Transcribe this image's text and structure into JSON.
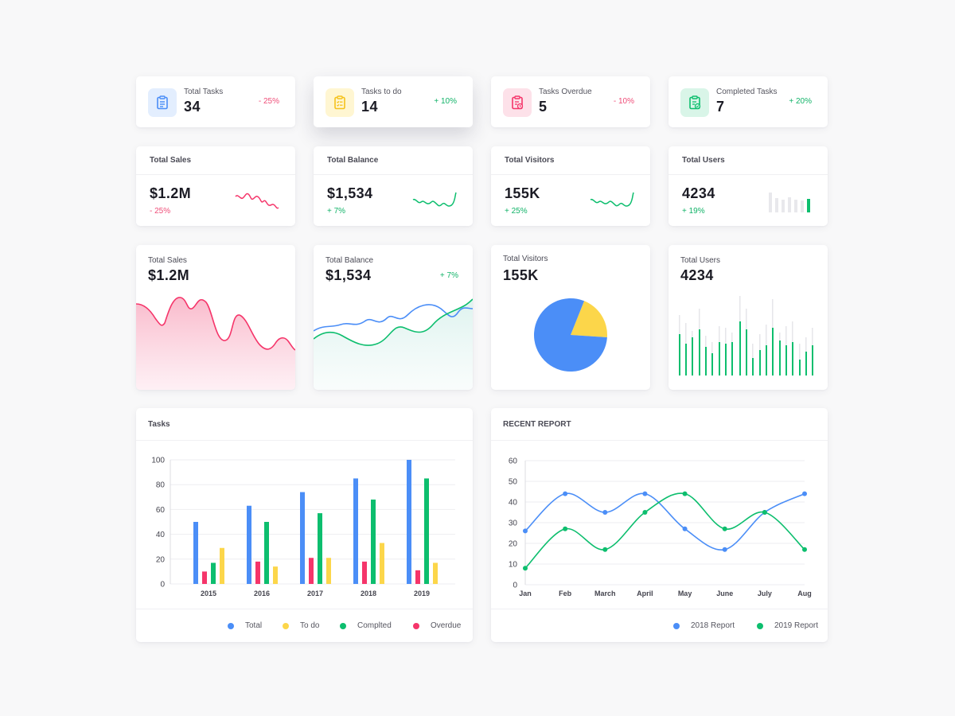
{
  "colors": {
    "blue": "#4b8ef7",
    "yellow": "#fcd64a",
    "green": "#0dbe6e",
    "pink": "#f5356a",
    "pink_text": "#ef4d78",
    "green_text": "#11b368"
  },
  "stats": [
    {
      "label": "Total Tasks",
      "value": "34",
      "change": "- 25%",
      "trend": "down",
      "icon": "clipboard-list-icon",
      "color": "blue"
    },
    {
      "label": "Tasks to do",
      "value": "14",
      "change": "+ 10%",
      "trend": "up",
      "icon": "clipboard-checklist-icon",
      "color": "yellow"
    },
    {
      "label": "Tasks Overdue",
      "value": "5",
      "change": "- 10%",
      "trend": "down",
      "icon": "clipboard-clock-icon",
      "color": "pink"
    },
    {
      "label": "Completed Tasks",
      "value": "7",
      "change": "+ 20%",
      "trend": "up",
      "icon": "clipboard-check-icon",
      "color": "green"
    }
  ],
  "metrics": [
    {
      "title": "Total Sales",
      "value": "$1.2M",
      "change": "- 25%",
      "trend": "down",
      "spark": "line"
    },
    {
      "title": "Total Balance",
      "value": "$1,534",
      "change": "+ 7%",
      "trend": "up",
      "spark": "line"
    },
    {
      "title": "Total Visitors",
      "value": "155K",
      "change": "+ 25%",
      "trend": "up",
      "spark": "line"
    },
    {
      "title": "Total Users",
      "value": "4234",
      "change": "+ 19%",
      "trend": "up",
      "spark": "bars"
    }
  ],
  "big_cards": [
    {
      "title": "Total Sales",
      "value": "$1.2M",
      "change": ""
    },
    {
      "title": "Total Balance",
      "value": "$1,534",
      "change": "+ 7%"
    },
    {
      "title": "Total Visitors",
      "value": "155K",
      "change": ""
    },
    {
      "title": "Total Users",
      "value": "4234",
      "change": ""
    }
  ],
  "pie": {
    "slices": [
      {
        "color": "yellow",
        "value": 20
      },
      {
        "color": "blue",
        "value": 80
      }
    ]
  },
  "tasks_panel": {
    "title": "Tasks",
    "chart_data": {
      "type": "bar",
      "categories": [
        "2015",
        "2016",
        "2017",
        "2018",
        "2019"
      ],
      "ylim": [
        0,
        100
      ],
      "yticks": [
        0,
        20,
        40,
        60,
        80,
        100
      ],
      "series": [
        {
          "name": "Total",
          "color": "blue",
          "values": [
            50,
            63,
            74,
            85,
            100
          ]
        },
        {
          "name": "Overdue",
          "color": "pink",
          "values": [
            10,
            18,
            21,
            18,
            11
          ]
        },
        {
          "name": "Complted",
          "color": "green",
          "values": [
            17,
            50,
            57,
            68,
            85
          ]
        },
        {
          "name": "To do",
          "color": "yellow",
          "values": [
            29,
            14,
            21,
            33,
            17
          ]
        }
      ]
    },
    "legend": [
      {
        "name": "Total",
        "color": "blue"
      },
      {
        "name": "To do",
        "color": "yellow"
      },
      {
        "name": "Complted",
        "color": "green"
      },
      {
        "name": "Overdue",
        "color": "pink"
      }
    ]
  },
  "report_panel": {
    "title": "RECENT REPORT",
    "chart_data": {
      "type": "line",
      "x": [
        "Jan",
        "Feb",
        "March",
        "April",
        "May",
        "June",
        "July",
        "Aug"
      ],
      "ylim": [
        0,
        60
      ],
      "yticks": [
        0,
        10,
        20,
        30,
        40,
        50,
        60
      ],
      "series": [
        {
          "name": "2018 Report",
          "color": "blue",
          "values": [
            26,
            44,
            35,
            44,
            27,
            17,
            35,
            44
          ]
        },
        {
          "name": "2019 Report",
          "color": "green",
          "values": [
            8,
            27,
            17,
            35,
            44,
            27,
            35,
            17
          ]
        }
      ]
    },
    "legend": [
      {
        "name": "2018 Report",
        "color": "blue"
      },
      {
        "name": "2019 Report",
        "color": "green"
      }
    ]
  }
}
